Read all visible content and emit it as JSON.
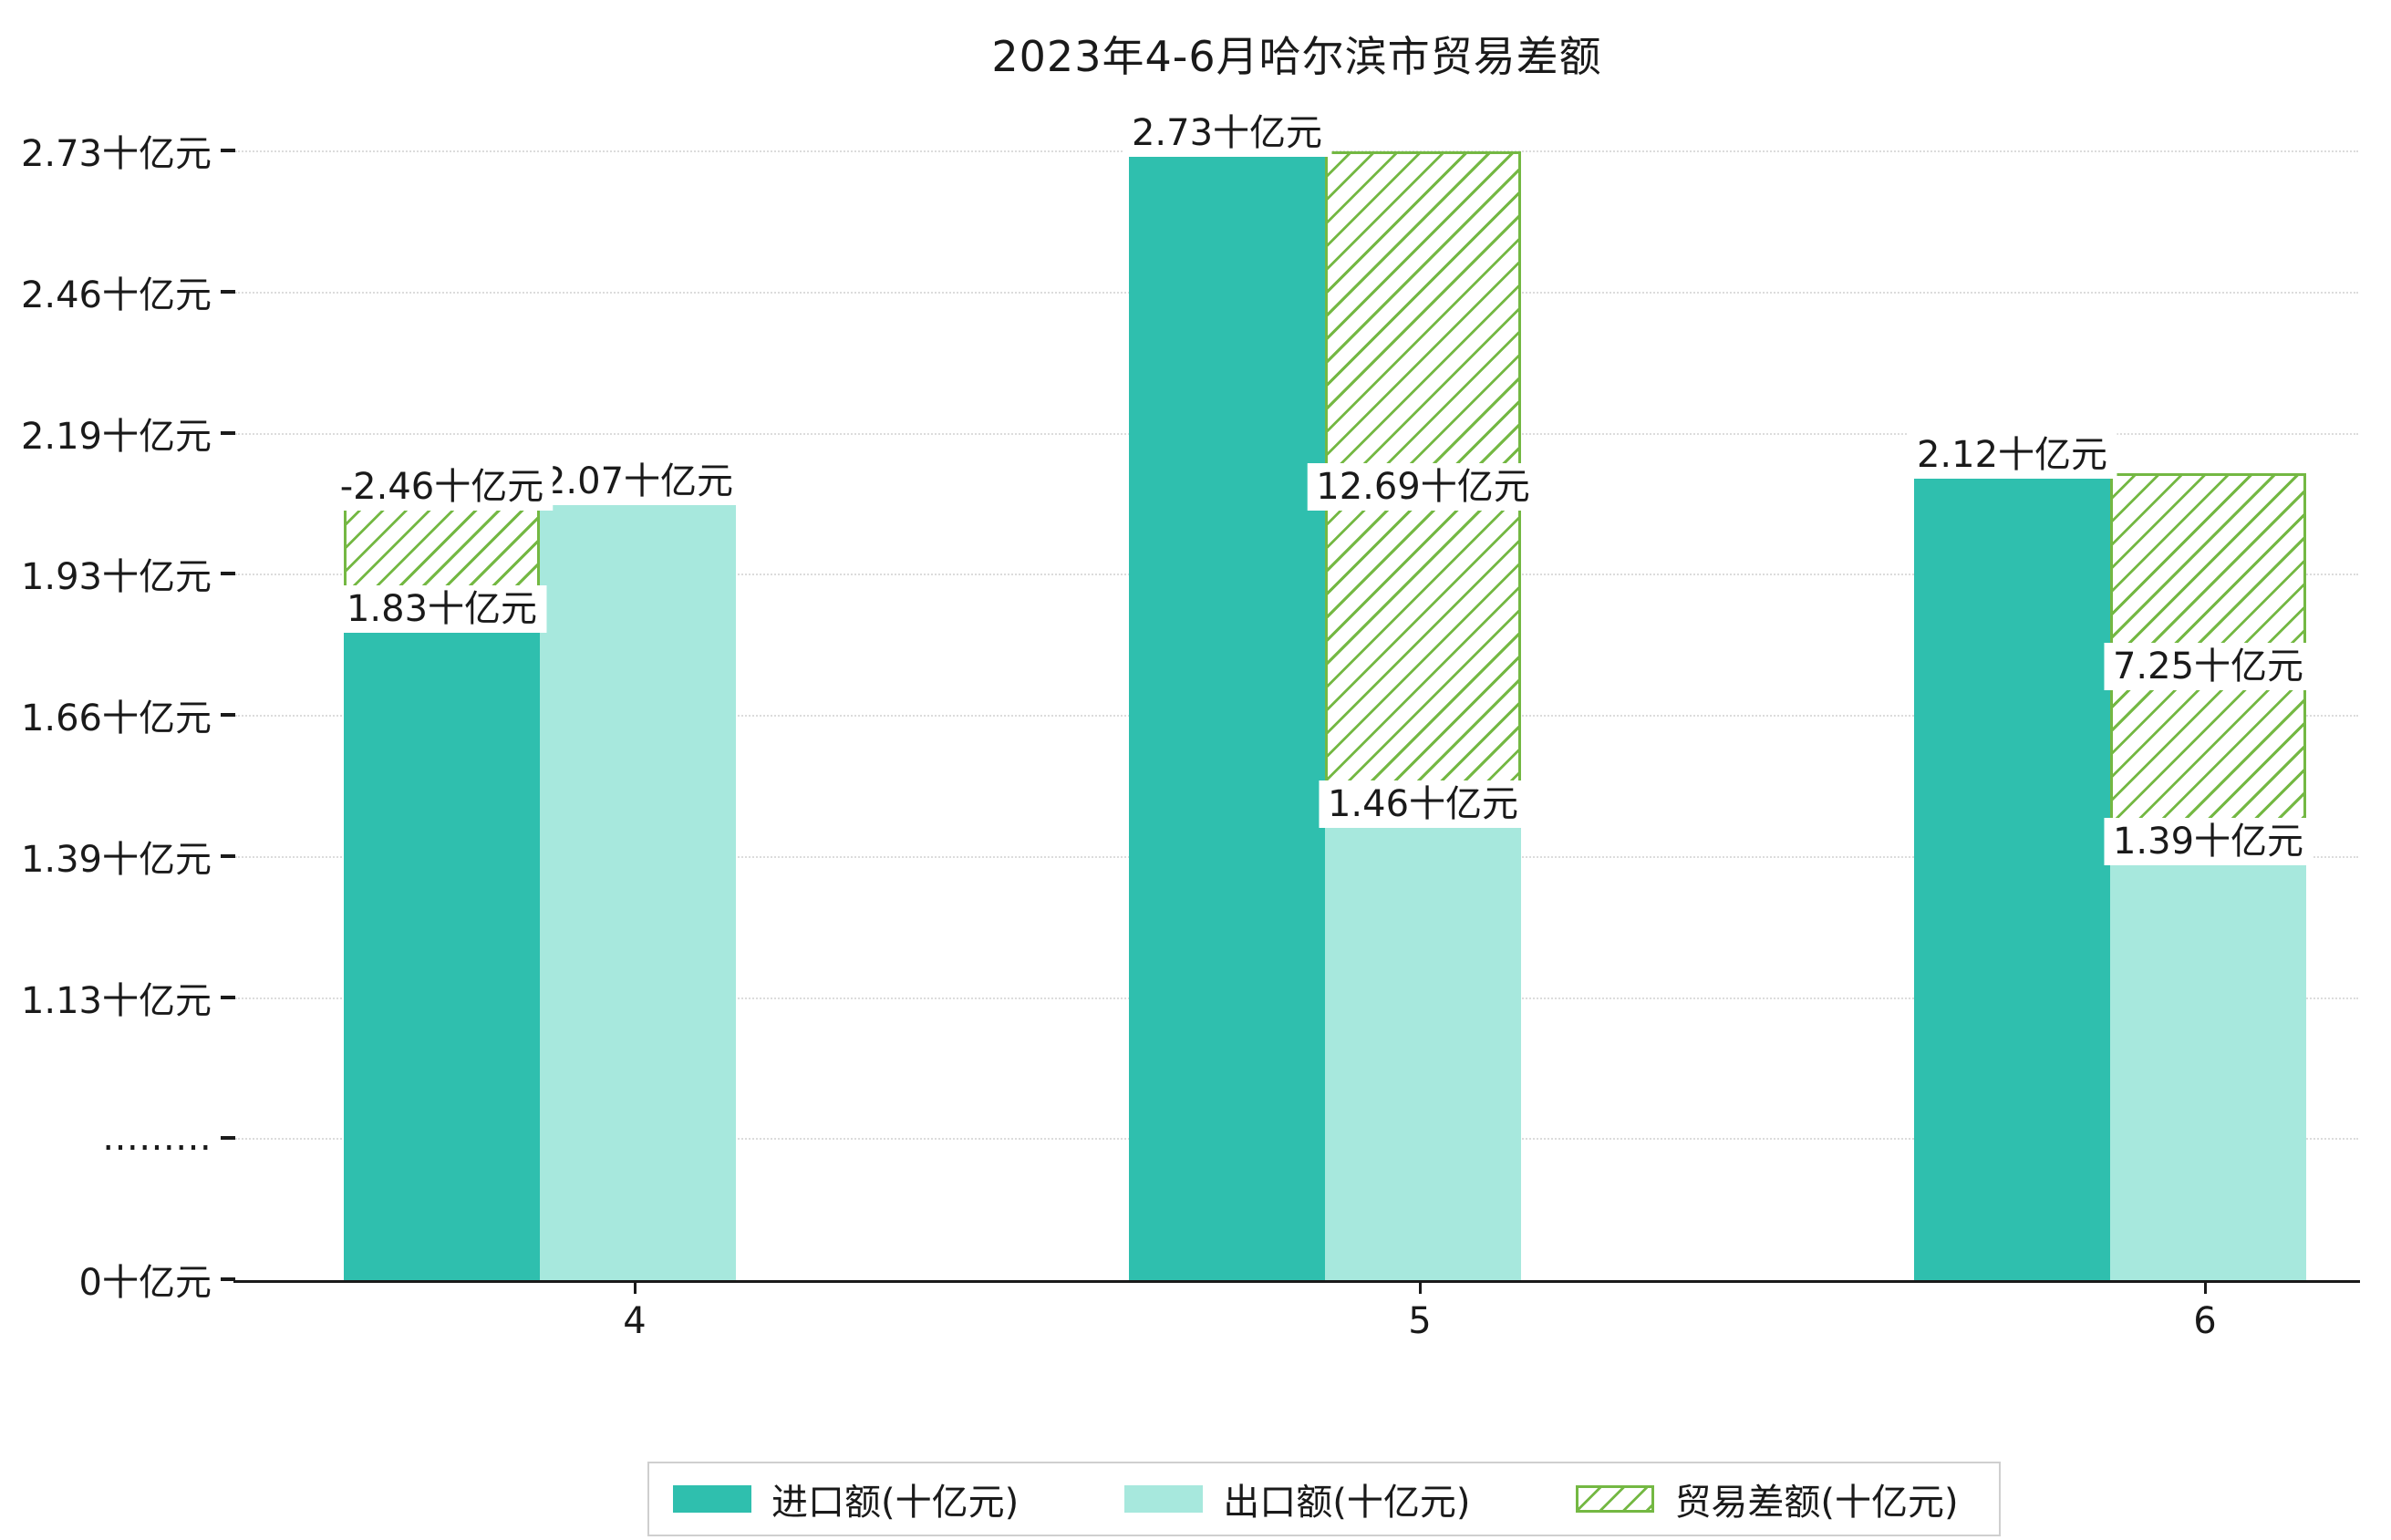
{
  "chart_data": {
    "type": "bar",
    "title": "2023年4-6月哈尔滨市贸易差额",
    "categories": [
      "4",
      "5",
      "6"
    ],
    "unit": "十亿元",
    "series": [
      {
        "key": "import",
        "name": "进口额(十亿元)",
        "values": [
          1.83,
          2.73,
          2.12
        ],
        "data_labels": [
          "1.83十亿元",
          "2.73十亿元",
          "2.12十亿元"
        ]
      },
      {
        "key": "export",
        "name": "出口额(十亿元)",
        "values": [
          2.07,
          1.46,
          1.39
        ],
        "data_labels": [
          "2.07十亿元",
          "1.46十亿元",
          "1.39十亿元"
        ]
      },
      {
        "key": "diff",
        "name": "贸易差额(十亿元)",
        "style": "hatched",
        "values": [
          -2.46,
          12.69,
          7.25
        ],
        "data_labels": [
          "-2.46十亿元",
          "12.69十亿元",
          "7.25十亿元"
        ]
      }
    ],
    "y_axis": {
      "tick_labels_bottom_to_top": [
        "0十亿元",
        "………",
        "1.13十亿元",
        "1.39十亿元",
        "1.66十亿元",
        "1.93十亿元",
        "2.19十亿元",
        "2.46十亿元",
        "2.73十亿元"
      ],
      "axis_break": true,
      "grid": "dotted"
    },
    "xlabel": "",
    "ylabel": "",
    "legend_position": "bottom",
    "colors": {
      "import": "#2fbfae",
      "export": "#a7e8dd",
      "diff": "#74b843",
      "text": "#1a1a1a",
      "grid": "#dcdcdc",
      "axis": "#1a1a1a",
      "label_bg": "#ffffff"
    }
  }
}
